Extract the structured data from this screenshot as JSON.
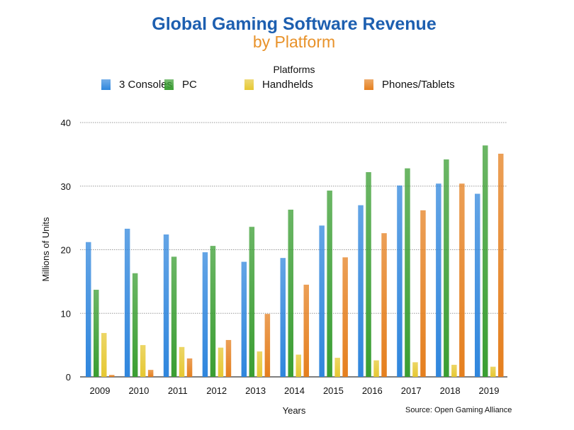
{
  "chart_data": {
    "type": "bar",
    "title": "Global Gaming Software Revenue",
    "subtitle": "by Platform",
    "legend_title": "Platforms",
    "legend_position": "top",
    "xlabel": "Years",
    "ylabel": "Millions of Units",
    "source": "Source: Open Gaming Alliance",
    "ylim": [
      0,
      40
    ],
    "yticks": [
      0,
      10,
      20,
      30,
      40
    ],
    "grid": true,
    "categories": [
      "2009",
      "2010",
      "2011",
      "2012",
      "2013",
      "2014",
      "2015",
      "2016",
      "2017",
      "2018",
      "2019"
    ],
    "series": [
      {
        "name": "3 Consoles",
        "color": "#2f86dd",
        "values": [
          21.2,
          23.3,
          22.4,
          19.6,
          18.1,
          18.7,
          23.8,
          27.0,
          30.1,
          30.4,
          28.8
        ]
      },
      {
        "name": "PC",
        "color": "#3a9e32",
        "values": [
          13.7,
          16.3,
          18.9,
          20.6,
          23.6,
          26.3,
          29.3,
          32.2,
          32.8,
          34.2,
          36.4
        ]
      },
      {
        "name": "Handhelds",
        "color": "#e6c832",
        "values": [
          6.9,
          5.0,
          4.7,
          4.6,
          4.0,
          3.5,
          3.0,
          2.6,
          2.3,
          1.9,
          1.6
        ]
      },
      {
        "name": "Phones/Tablets",
        "color": "#e57f1e",
        "values": [
          0.3,
          1.1,
          2.9,
          5.8,
          9.9,
          14.5,
          18.8,
          22.6,
          26.2,
          30.4,
          35.1
        ]
      }
    ]
  }
}
